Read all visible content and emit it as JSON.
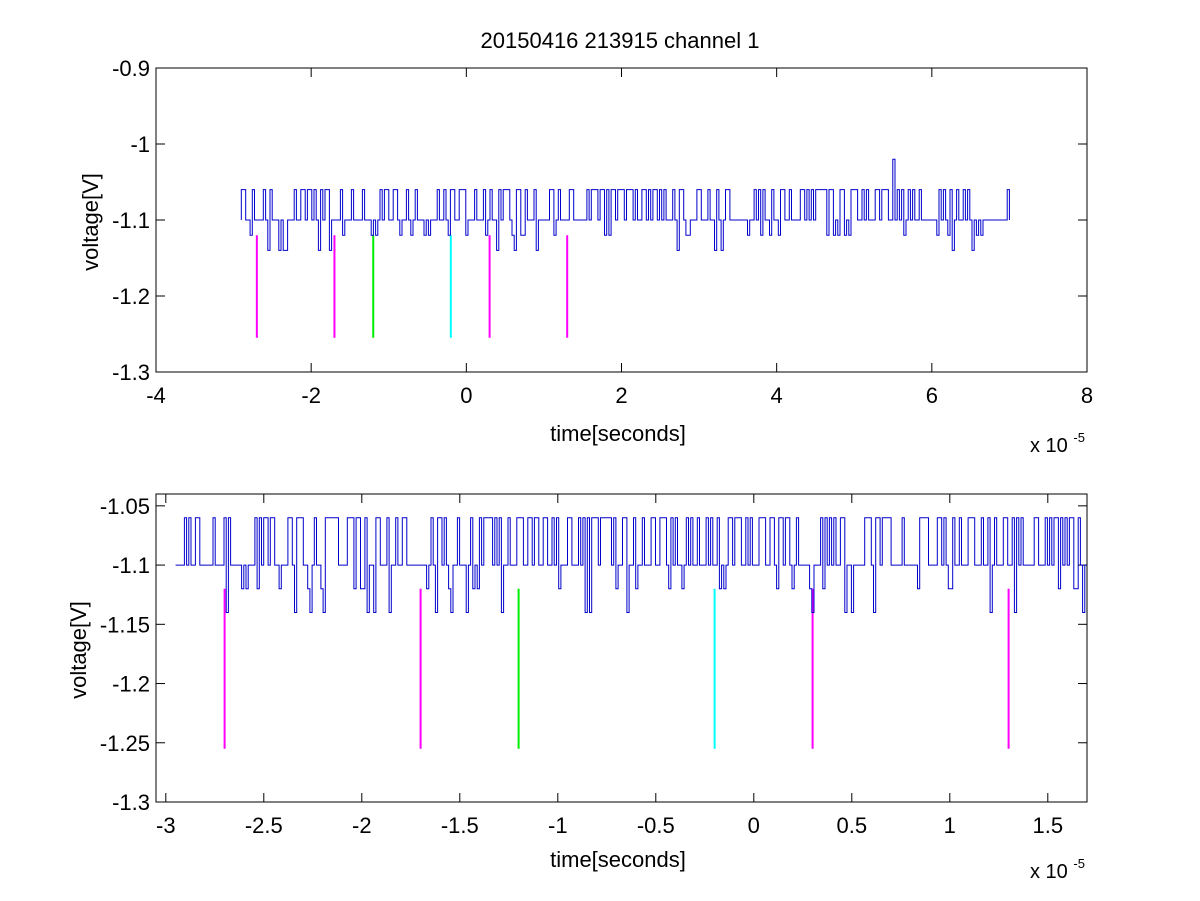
{
  "chart_data": [
    {
      "type": "line",
      "title": "20150416 213915 channel 1",
      "xlabel": "time[seconds]",
      "ylabel": "voltage[V]",
      "x_multiplier_label": "x 10",
      "x_multiplier_exponent": "-5",
      "xlim": [
        -4,
        8
      ],
      "ylim": [
        -1.3,
        -0.9
      ],
      "xticks": [
        -4,
        -2,
        0,
        2,
        4,
        6,
        8
      ],
      "xtick_labels": [
        "-4",
        "-2",
        "0",
        "2",
        "4",
        "6",
        "8"
      ],
      "yticks": [
        -1.3,
        -1.2,
        -1.1,
        -1,
        -0.9
      ],
      "ytick_labels": [
        "-1.3",
        "-1.2",
        "-1.1",
        "-1",
        "-0.9"
      ],
      "grid": false,
      "signal": {
        "color": "#0000cc",
        "x_range": [
          -2.9,
          7.0
        ],
        "baseline": -1.1,
        "levels": [
          -1.06,
          -1.1,
          -1.12,
          -1.14
        ],
        "spike": {
          "x": 5.5,
          "y": -1.02
        }
      },
      "markers": [
        {
          "x": -2.7,
          "color": "#ff00ff",
          "y_top": -1.12,
          "y_bottom": -1.255
        },
        {
          "x": -1.7,
          "color": "#ff00ff",
          "y_top": -1.12,
          "y_bottom": -1.255
        },
        {
          "x": -1.2,
          "color": "#00ee00",
          "y_top": -1.12,
          "y_bottom": -1.255
        },
        {
          "x": -0.2,
          "color": "#00ffff",
          "y_top": -1.12,
          "y_bottom": -1.255
        },
        {
          "x": 0.3,
          "color": "#ff00ff",
          "y_top": -1.12,
          "y_bottom": -1.255
        },
        {
          "x": 1.3,
          "color": "#ff00ff",
          "y_top": -1.12,
          "y_bottom": -1.255
        }
      ]
    },
    {
      "type": "line",
      "title": "",
      "xlabel": "time[seconds]",
      "ylabel": "voltage[V]",
      "x_multiplier_label": "x 10",
      "x_multiplier_exponent": "-5",
      "xlim": [
        -3.05,
        1.7
      ],
      "ylim": [
        -1.3,
        -1.04
      ],
      "xticks": [
        -3,
        -2.5,
        -2,
        -1.5,
        -1,
        -0.5,
        0,
        0.5,
        1,
        1.5
      ],
      "xtick_labels": [
        "-3",
        "-2.5",
        "-2",
        "-1.5",
        "-1",
        "-0.5",
        "0",
        "0.5",
        "1",
        "1.5"
      ],
      "yticks": [
        -1.3,
        -1.25,
        -1.2,
        -1.15,
        -1.1,
        -1.05
      ],
      "ytick_labels": [
        "-1.3",
        "-1.25",
        "-1.2",
        "-1.15",
        "-1.1",
        "-1.05"
      ],
      "grid": false,
      "signal": {
        "color": "#0000cc",
        "x_range": [
          -2.95,
          1.7
        ],
        "baseline": -1.1,
        "levels": [
          -1.06,
          -1.1,
          -1.12,
          -1.14
        ]
      },
      "markers": [
        {
          "x": -2.7,
          "color": "#ff00ff",
          "y_top": -1.12,
          "y_bottom": -1.255
        },
        {
          "x": -1.7,
          "color": "#ff00ff",
          "y_top": -1.12,
          "y_bottom": -1.255
        },
        {
          "x": -1.2,
          "color": "#00ee00",
          "y_top": -1.12,
          "y_bottom": -1.255
        },
        {
          "x": -0.2,
          "color": "#00ffff",
          "y_top": -1.12,
          "y_bottom": -1.255
        },
        {
          "x": 0.3,
          "color": "#ff00ff",
          "y_top": -1.12,
          "y_bottom": -1.255
        },
        {
          "x": 1.3,
          "color": "#ff00ff",
          "y_top": -1.12,
          "y_bottom": -1.255
        }
      ]
    }
  ]
}
